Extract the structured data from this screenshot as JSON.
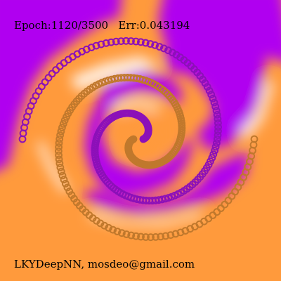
{
  "status": {
    "epoch_label": "Epoch:",
    "epoch": "1120/3500",
    "error_label": "Err:",
    "error": "0.043194"
  },
  "credit": "LKYDeepNN, mosdeo@gmail.com",
  "colors": {
    "class_a": "#b000f0",
    "class_b": "#ff9a3c",
    "boundary": "#ffffff",
    "marker_a": "#8c10b8",
    "marker_b": "#c0782c"
  },
  "icons": {
    "class_a_marker": "ring-icon",
    "class_b_marker": "ring-icon"
  }
}
